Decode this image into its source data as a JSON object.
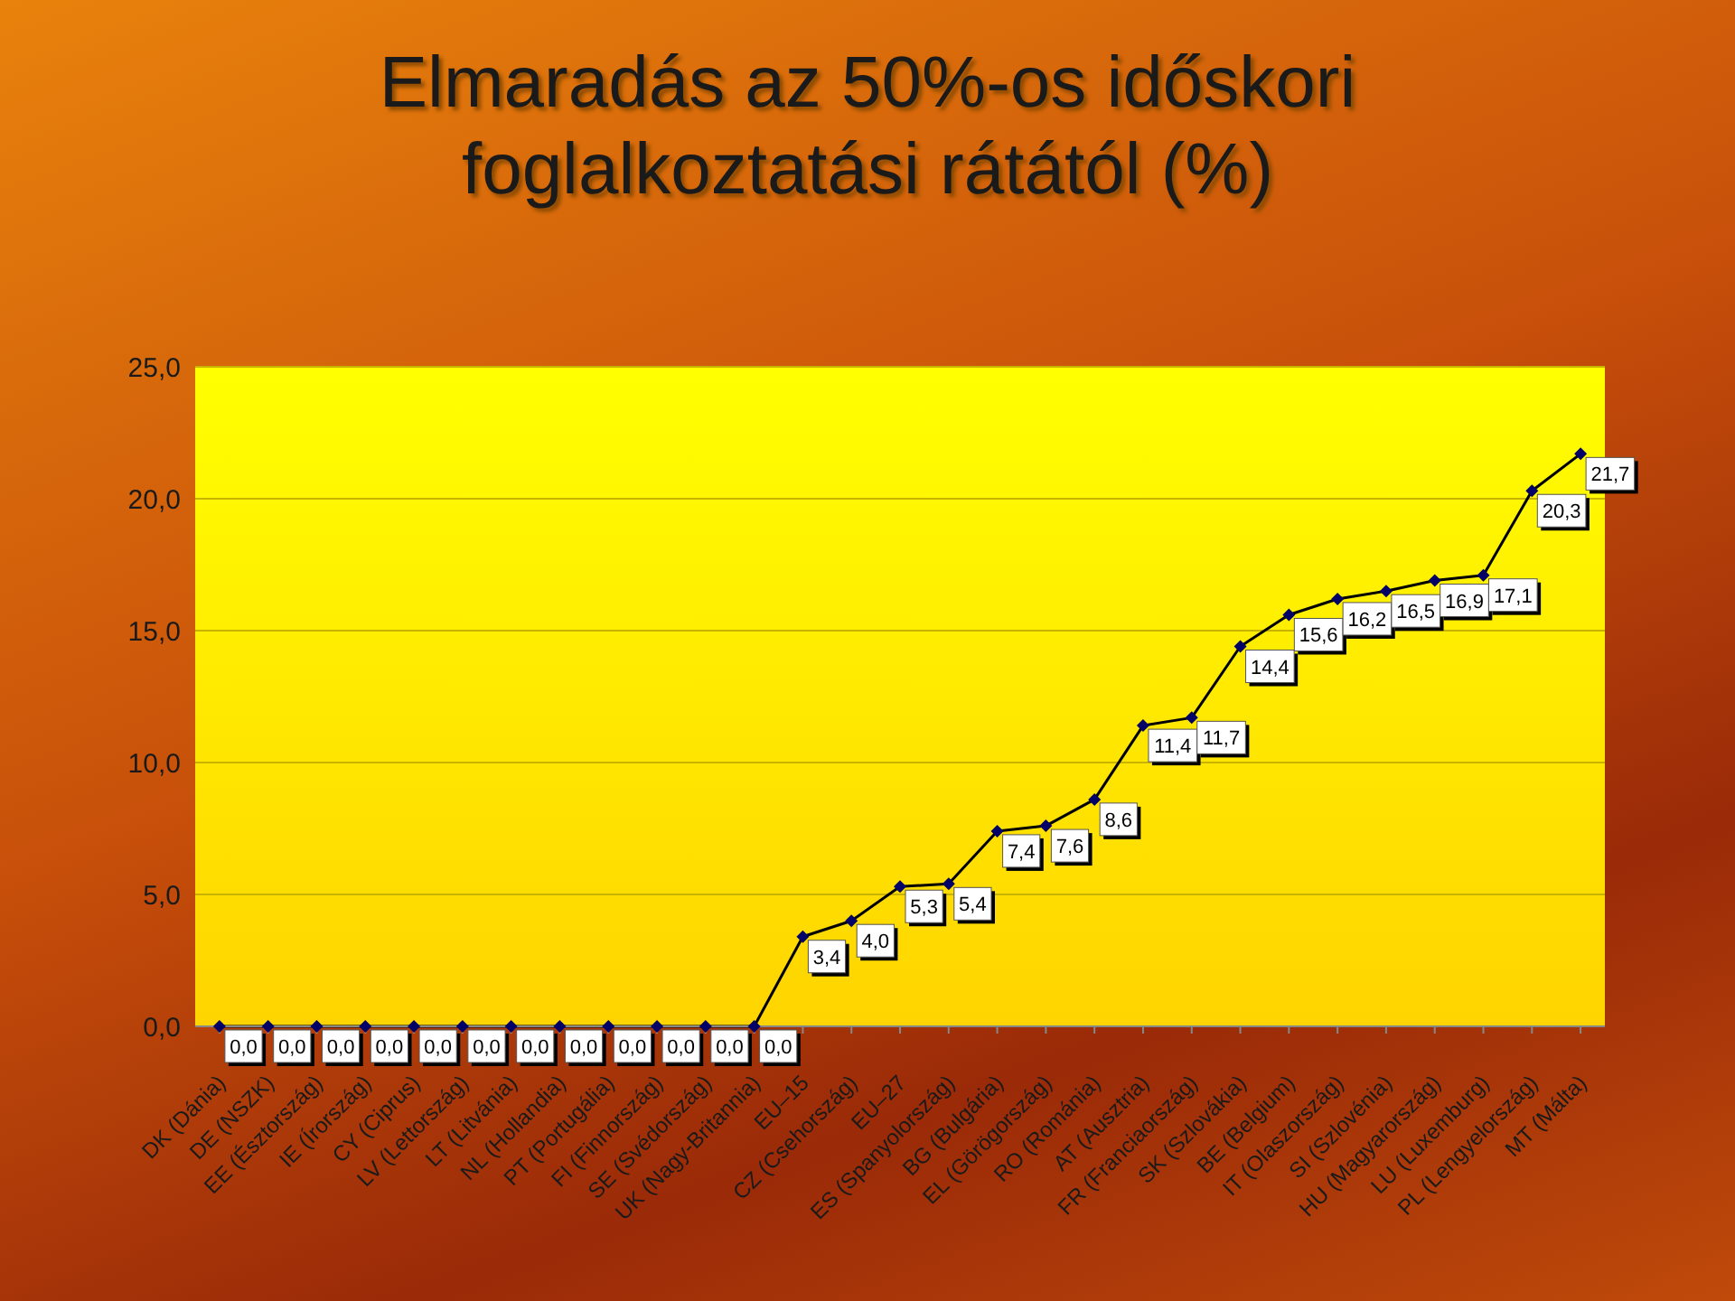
{
  "chart_data": {
    "type": "line",
    "title": "Elmaradás az 50%-os időskori foglalkoztatási rátától (%)",
    "categories": [
      "DK (Dánia)",
      "DE (NSZK)",
      "EE (Észtország)",
      "IE (Írország)",
      "CY (Ciprus)",
      "LV (Lettország)",
      "LT  (Litvánia)",
      "NL (Hollandia)",
      "PT (Portugália)",
      "FI (Finnország)",
      "SE (Svédország)",
      "UK (Nagy-Britannia)",
      "EU–15",
      "CZ (Csehország)",
      "EU–27",
      "ES (Spanyolország)",
      "BG (Bulgária)",
      "EL (Görögország)",
      "RO (Románia)",
      "AT (Ausztria)",
      "FR (Franciaország)",
      "SK (Szlovákia)",
      "BE (Belgium)",
      "IT (Olaszország)",
      "SI (Szlovénia)",
      "HU  (Magyarország)",
      "LU  (Luxemburg)",
      "PL (Lengyelország)",
      "MT  (Málta)"
    ],
    "series": [
      {
        "color": "#000066",
        "values": [
          0,
          0,
          0,
          0,
          0,
          0,
          0,
          0,
          0,
          0,
          0,
          0,
          3.4,
          4.0,
          5.3,
          5.4,
          7.4,
          7.6,
          8.6,
          11.4,
          11.7,
          14.4,
          15.6,
          16.2,
          16.5,
          16.9,
          17.1,
          20.3,
          21.7
        ],
        "value_labels": [
          "0,0",
          "0,0",
          "0,0",
          "0,0",
          "0,0",
          "0,0",
          "0,0",
          "0,0",
          "0,0",
          "0,0",
          "0,0",
          "0,0",
          "3,4",
          "4,0",
          "5,3",
          "5,4",
          "7,4",
          "7,6",
          "8,6",
          "11,4",
          "11,7",
          "14,4",
          "15,6",
          "16,2",
          "16,5",
          "16,9",
          "17,1",
          "20,3",
          "21,7"
        ]
      }
    ],
    "ylim": [
      0,
      25
    ],
    "yticks": [
      {
        "value": 0,
        "label": "0,0"
      },
      {
        "value": 5,
        "label": "5,0"
      },
      {
        "value": 10,
        "label": "10,0"
      },
      {
        "value": 15,
        "label": "15,0"
      },
      {
        "value": 20,
        "label": "20,0"
      },
      {
        "value": 25,
        "label": "25,0"
      }
    ],
    "grid": "y",
    "marker": "diamond",
    "line_style": "solid",
    "legend": false
  }
}
